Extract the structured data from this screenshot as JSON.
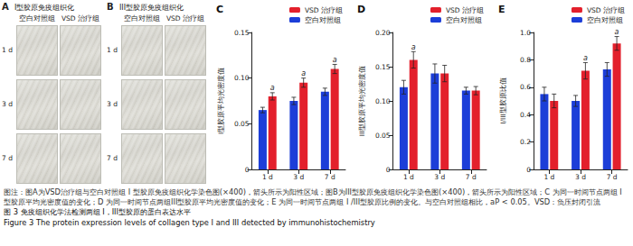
{
  "panels": [
    {
      "letter": "A",
      "title": "I型胶原免疫组织化",
      "columns": [
        "空白对照组",
        "VSD 治疗组"
      ],
      "rows": [
        "1 d",
        "3 d",
        "7 d"
      ]
    },
    {
      "letter": "B",
      "title": "III型胶原免疫组织化",
      "columns": [
        "空白对照组",
        "VSD 治疗组"
      ],
      "rows": [
        "1 d",
        "3 d",
        "7 d"
      ]
    }
  ],
  "chart_data": [
    {
      "type": "bar",
      "title": "C",
      "ylabel": "I型胶原平均光密度值",
      "categories": [
        "1 d",
        "3 d",
        "7 d"
      ],
      "series": [
        {
          "name": "VSD 治疗组",
          "color": "#e3202c",
          "values": [
            0.08,
            0.095,
            0.11
          ],
          "errors": [
            0.004,
            0.005,
            0.005
          ],
          "annotations": [
            "a",
            "a",
            "a"
          ]
        },
        {
          "name": "空白对照组",
          "color": "#1c3ed8",
          "values": [
            0.065,
            0.075,
            0.085
          ],
          "errors": [
            0.003,
            0.004,
            0.004
          ],
          "annotations": [
            null,
            null,
            null
          ]
        }
      ],
      "ylim": [
        0,
        0.15
      ],
      "yticks": [
        0,
        0.05,
        {
          "value": 0.1,
          "label": "0.10"
        },
        0.15
      ],
      "grid": false,
      "legend": "top"
    },
    {
      "type": "bar",
      "title": "D",
      "ylabel": "III型胶原平均光密度值",
      "categories": [
        "1 d",
        "3 d",
        "7 d"
      ],
      "series": [
        {
          "name": "VSD 治疗组",
          "color": "#e3202c",
          "values": [
            0.16,
            0.14,
            0.115
          ],
          "errors": [
            0.012,
            0.012,
            0.006
          ],
          "annotations": [
            "a",
            null,
            null
          ]
        },
        {
          "name": "空白对照组",
          "color": "#1c3ed8",
          "values": [
            0.12,
            0.14,
            0.115
          ],
          "errors": [
            0.01,
            0.014,
            0.005
          ],
          "annotations": [
            null,
            null,
            null
          ]
        }
      ],
      "ylim": [
        0,
        0.2
      ],
      "yticks": [
        0,
        0.05,
        {
          "value": 0.1,
          "label": "0.10"
        },
        0.15,
        {
          "value": 0.2,
          "label": "0.20"
        }
      ],
      "grid": false,
      "legend": "top"
    },
    {
      "type": "bar",
      "title": "E",
      "ylabel": "I/III型胶原比值",
      "categories": [
        "1 d",
        "3 d",
        "7 d"
      ],
      "series": [
        {
          "name": "VSD 治疗组",
          "color": "#e3202c",
          "values": [
            0.5,
            0.72,
            0.92
          ],
          "errors": [
            0.05,
            0.06,
            0.05
          ],
          "annotations": [
            null,
            "a",
            "a"
          ]
        },
        {
          "name": "空白对照组",
          "color": "#1c3ed8",
          "values": [
            0.55,
            0.5,
            0.73
          ],
          "errors": [
            0.05,
            0.04,
            0.05
          ],
          "annotations": [
            null,
            null,
            null
          ]
        }
      ],
      "ylim": [
        0,
        1.0
      ],
      "yticks": [
        0,
        0.2,
        0.4,
        0.6,
        0.8,
        {
          "value": 1.0,
          "label": "1.0"
        }
      ],
      "grid": false,
      "legend": "top"
    }
  ],
  "caption": {
    "note": "图注：图A为VSD治疗组与空白对照组 I 型胶原免疫组织化学染色图(×400)，箭头所示为阳性区域；图B为III型胶原免疫组织化学染色图(×400)，箭头所示为阳性区域；C 为同一时间节点两组 I 型胶原平均光密度值的变化；D 为同一时间节点两组III型胶原平均光密度值的变化；E 为同一时间节点两组 I /III型胶原比例的变化。与空白对照组相比，aP < 0.05。VSD：负压封闭引流",
    "title_zh": "图 3   免疫组织化学法检测两组 I，III型胶原的蛋白表达水平",
    "title_en": "Figure 3   The protein expression levels of collagen type I and III detected by immunohistochemistry"
  }
}
